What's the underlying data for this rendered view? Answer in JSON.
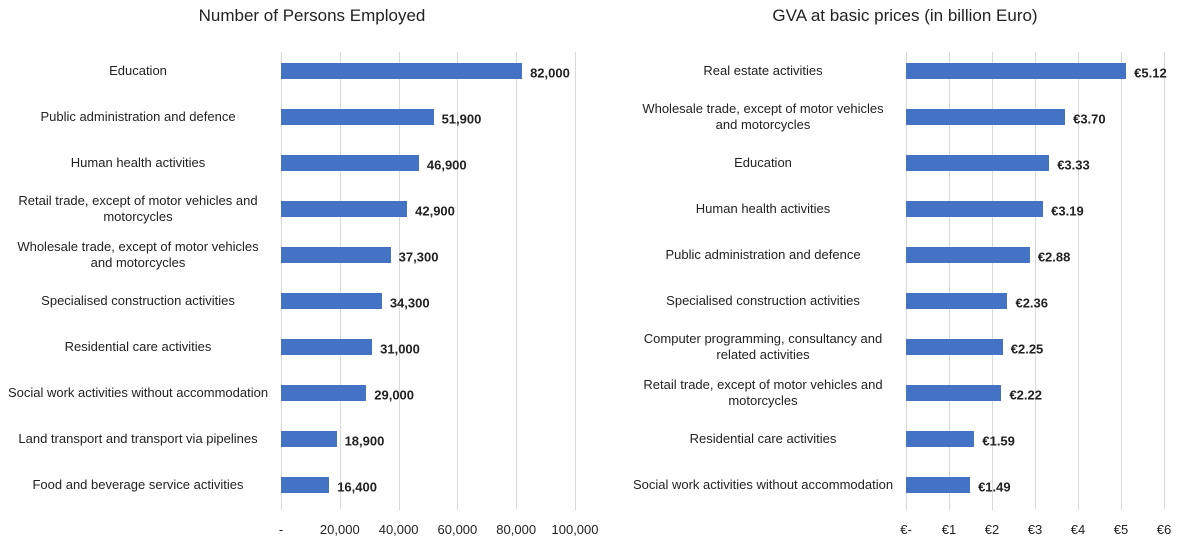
{
  "chart_data": [
    {
      "type": "bar",
      "orientation": "horizontal",
      "title": "Number of Persons Employed",
      "categories": [
        "Education",
        "Public administration and defence",
        "Human health activities",
        "Retail trade, except of motor vehicles and motorcycles",
        "Wholesale trade, except of motor vehicles and motorcycles",
        "Specialised construction activities",
        "Residential care activities",
        "Social work activities without accommodation",
        "Land transport and transport via pipelines",
        "Food and beverage service activities"
      ],
      "values": [
        82000,
        51900,
        46900,
        42900,
        37300,
        34300,
        31000,
        29000,
        18900,
        16400
      ],
      "value_labels": [
        "82,000",
        "51,900",
        "46,900",
        "42,900",
        "37,300",
        "34,300",
        "31,000",
        "29,000",
        "18,900",
        "16,400"
      ],
      "color": "#4472c4",
      "grid": true,
      "xlim": [
        0,
        100000
      ],
      "xticks": [
        {
          "value": 0,
          "label": "-"
        },
        {
          "value": 20000,
          "label": "20,000"
        },
        {
          "value": 40000,
          "label": "40,000"
        },
        {
          "value": 60000,
          "label": "60,000"
        },
        {
          "value": 80000,
          "label": "80,000"
        },
        {
          "value": 100000,
          "label": "100,000"
        }
      ]
    },
    {
      "type": "bar",
      "orientation": "horizontal",
      "title": "GVA at basic prices (in billion Euro)",
      "categories": [
        "Real estate activities",
        "Wholesale trade, except of motor vehicles and motorcycles",
        "Education",
        "Human health activities",
        "Public administration and defence",
        "Specialised construction activities",
        "Computer programming, consultancy and related activities",
        "Retail trade, except of motor vehicles and motorcycles",
        "Residential care activities",
        "Social work activities without accommodation"
      ],
      "values": [
        5.12,
        3.7,
        3.33,
        3.19,
        2.88,
        2.36,
        2.25,
        2.22,
        1.59,
        1.49
      ],
      "value_labels": [
        "€5.12",
        "€3.70",
        "€3.33",
        "€3.19",
        "€2.88",
        "€2.36",
        "€2.25",
        "€2.22",
        "€1.59",
        "€1.49"
      ],
      "color": "#4472c4",
      "grid": true,
      "xlim": [
        0,
        6
      ],
      "xticks": [
        {
          "value": 0,
          "label": "€-"
        },
        {
          "value": 1,
          "label": "€1"
        },
        {
          "value": 2,
          "label": "€2"
        },
        {
          "value": 3,
          "label": "€3"
        },
        {
          "value": 4,
          "label": "€4"
        },
        {
          "value": 5,
          "label": "€5"
        },
        {
          "value": 6,
          "label": "€6"
        }
      ]
    }
  ]
}
